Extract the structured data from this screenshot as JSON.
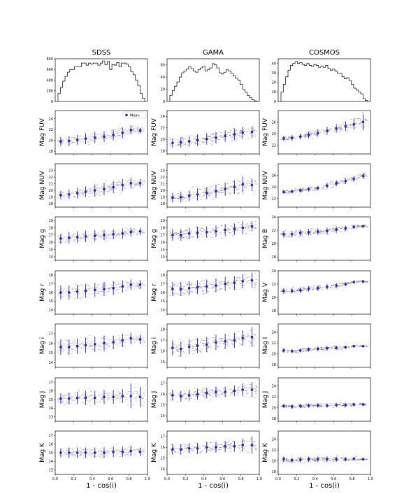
{
  "chart_data": {
    "type": "scatter",
    "column_titles": [
      "SDSS",
      "GAMA",
      "COSMOS"
    ],
    "xlabel": "1 - cos(i)",
    "xlim": [
      0.0,
      1.0
    ],
    "xticks": [
      "0.0",
      "0.2",
      "0.4",
      "0.6",
      "0.8",
      "1.0"
    ],
    "legend": {
      "label": "Mean",
      "placement": "top-right"
    },
    "histograms": [
      {
        "survey": "SDSS",
        "ylim": [
          0,
          800
        ],
        "yticks": [
          "0",
          "200",
          "400",
          "600",
          "800"
        ],
        "values": [
          150,
          260,
          380,
          470,
          550,
          600,
          600,
          650,
          650,
          650,
          720,
          720,
          680,
          720,
          700,
          720,
          720,
          680,
          720,
          760,
          690,
          750,
          600,
          690,
          680,
          730,
          650,
          720,
          720,
          700,
          650,
          560,
          500,
          400,
          300,
          150,
          60
        ]
      },
      {
        "survey": "GAMA",
        "ylim": [
          0,
          70
        ],
        "yticks": [
          "0",
          "20",
          "40",
          "60"
        ],
        "values": [
          10,
          18,
          25,
          32,
          40,
          47,
          50,
          53,
          57,
          54,
          50,
          48,
          52,
          55,
          58,
          50,
          52,
          55,
          62,
          60,
          55,
          47,
          45,
          48,
          52,
          50,
          46,
          42,
          38,
          35,
          28,
          20,
          15,
          10,
          6,
          3,
          1
        ]
      },
      {
        "survey": "COSMOS",
        "ylim": [
          0,
          45
        ],
        "yticks": [
          "0",
          "10",
          "20",
          "30",
          "40"
        ],
        "values": [
          10,
          18,
          26,
          33,
          38,
          40,
          42,
          40,
          41,
          39,
          38,
          40,
          38,
          37,
          39,
          38,
          36,
          37,
          36,
          38,
          35,
          33,
          34,
          32,
          30,
          30,
          26,
          24,
          25,
          22,
          18,
          14,
          12,
          10,
          8,
          3,
          1
        ]
      }
    ],
    "series_x": [
      0.06,
      0.15,
      0.24,
      0.33,
      0.43,
      0.53,
      0.63,
      0.73,
      0.82,
      0.92
    ],
    "rows": [
      {
        "panels": [
          {
            "ylabel": "Mag FUV",
            "ylim": [
              17.5,
              25.5
            ],
            "yticks": [
              18,
              20,
              22,
              24
            ],
            "mean": [
              19.8,
              19.9,
              20.1,
              20.3,
              20.5,
              20.7,
              21.0,
              21.4,
              21.9,
              21.8
            ],
            "err": [
              0.8,
              0.9,
              0.9,
              1.0,
              1.0,
              1.0,
              1.0,
              1.0,
              0.8,
              0.5
            ]
          },
          {
            "ylabel": "Mag FUV",
            "ylim": [
              17.5,
              25
            ],
            "yticks": [
              18,
              20,
              22,
              24
            ],
            "mean": [
              19.4,
              19.5,
              19.7,
              19.9,
              20.1,
              20.3,
              20.6,
              20.9,
              21.2,
              21.3
            ],
            "err": [
              0.8,
              0.9,
              0.9,
              1.0,
              1.0,
              1.0,
              1.0,
              1.0,
              1.0,
              1.0
            ]
          },
          {
            "ylabel": "Mag FUV",
            "ylim": [
              20.5,
              28
            ],
            "yticks": [
              22,
              24,
              26
            ],
            "mean": [
              23.2,
              23.3,
              23.5,
              23.8,
              24.1,
              24.5,
              24.9,
              25.3,
              25.6,
              26.0
            ],
            "err": [
              0.4,
              0.5,
              0.5,
              0.6,
              0.6,
              0.7,
              0.7,
              0.8,
              0.9,
              1.4
            ]
          }
        ]
      },
      {
        "panels": [
          {
            "ylabel": "Mag NUV",
            "ylim": [
              17.5,
              24
            ],
            "yticks": [
              18,
              19,
              20,
              21,
              22,
              23
            ],
            "mean": [
              19.3,
              19.4,
              19.6,
              19.8,
              20.0,
              20.2,
              20.5,
              20.8,
              21.1,
              21.1
            ],
            "err": [
              0.6,
              0.7,
              0.8,
              0.8,
              0.9,
              0.9,
              0.9,
              0.9,
              0.8,
              0.6
            ]
          },
          {
            "ylabel": "Mag NUV",
            "ylim": [
              17.5,
              24
            ],
            "yticks": [
              18,
              19,
              20,
              21,
              22,
              23
            ],
            "mean": [
              18.9,
              19.0,
              19.2,
              19.4,
              19.6,
              19.9,
              20.2,
              20.5,
              20.9,
              20.8
            ],
            "err": [
              0.7,
              0.8,
              0.8,
              0.9,
              0.9,
              1.0,
              1.0,
              1.0,
              1.2,
              0.9
            ]
          },
          {
            "ylabel": "Mag NUV",
            "ylim": [
              20.5,
              28
            ],
            "yticks": [
              22,
              24,
              26
            ],
            "mean": [
              23.1,
              23.2,
              23.4,
              23.6,
              23.8,
              24.2,
              24.6,
              25.0,
              25.4,
              25.9
            ],
            "err": [
              0.3,
              0.3,
              0.4,
              0.4,
              0.4,
              0.5,
              0.5,
              0.5,
              0.5,
              0.5
            ]
          }
        ]
      },
      {
        "panels": [
          {
            "ylabel": "Mag g",
            "ylim": [
              13.5,
              19.5
            ],
            "yticks": [
              14,
              15,
              16,
              17,
              18,
              19
            ],
            "mean": [
              16.5,
              16.6,
              16.7,
              16.8,
              16.9,
              17.0,
              17.1,
              17.2,
              17.4,
              17.5
            ],
            "err": [
              0.7,
              0.8,
              0.8,
              0.8,
              0.8,
              0.7,
              0.7,
              0.7,
              0.6,
              0.5
            ]
          },
          {
            "ylabel": "Mag g",
            "ylim": [
              13.5,
              19.5
            ],
            "yticks": [
              14,
              15,
              16,
              17,
              18,
              19
            ],
            "mean": [
              17.0,
              17.0,
              17.2,
              17.3,
              17.4,
              17.5,
              17.7,
              17.8,
              18.0,
              18.2
            ],
            "err": [
              0.8,
              0.8,
              0.8,
              0.8,
              0.8,
              0.8,
              0.8,
              0.8,
              0.9,
              0.7
            ]
          },
          {
            "ylabel": "Mag B",
            "ylim": [
              17.5,
              24
            ],
            "yticks": [
              18,
              20,
              22,
              24
            ],
            "mean": [
              21.4,
              21.4,
              21.6,
              21.7,
              21.8,
              21.9,
              22.1,
              22.3,
              22.5,
              22.6
            ],
            "err": [
              0.5,
              0.5,
              0.5,
              0.5,
              0.5,
              0.5,
              0.5,
              0.4,
              0.3,
              0.2
            ]
          }
        ]
      },
      {
        "panels": [
          {
            "ylabel": "Mag r",
            "ylim": [
              13.5,
              18.5
            ],
            "yticks": [
              14,
              15,
              16,
              17,
              18
            ],
            "mean": [
              16.0,
              16.0,
              16.1,
              16.2,
              16.3,
              16.4,
              16.5,
              16.7,
              16.9,
              16.9
            ],
            "err": [
              0.8,
              0.8,
              0.8,
              0.8,
              0.8,
              0.8,
              0.8,
              0.7,
              0.6,
              0.5
            ]
          },
          {
            "ylabel": "Mag r",
            "ylim": [
              13.5,
              18.5
            ],
            "yticks": [
              14,
              15,
              16,
              17,
              18
            ],
            "mean": [
              16.4,
              16.4,
              16.5,
              16.6,
              16.7,
              16.8,
              17.0,
              17.1,
              17.3,
              17.4
            ],
            "err": [
              0.8,
              0.8,
              0.8,
              0.8,
              0.8,
              0.8,
              0.8,
              0.8,
              0.8,
              0.9
            ]
          },
          {
            "ylabel": "Mag V",
            "ylim": [
              17.5,
              24
            ],
            "yticks": [
              18,
              20,
              22,
              24
            ],
            "mean": [
              21.0,
              21.0,
              21.1,
              21.3,
              21.4,
              21.6,
              21.8,
              22.0,
              22.3,
              22.4
            ],
            "err": [
              0.4,
              0.4,
              0.4,
              0.4,
              0.4,
              0.4,
              0.4,
              0.3,
              0.2,
              0.2
            ]
          }
        ]
      },
      {
        "panels": [
          {
            "ylabel": "Mag i",
            "ylim": [
              13.5,
              18
            ],
            "yticks": [
              14,
              15,
              16,
              17
            ],
            "mean": [
              15.6,
              15.6,
              15.7,
              15.8,
              15.9,
              16.0,
              16.1,
              16.3,
              16.5,
              16.4
            ],
            "err": [
              0.8,
              0.8,
              0.8,
              0.8,
              0.8,
              0.8,
              0.7,
              0.7,
              0.6,
              0.5
            ]
          },
          {
            "ylabel": "Mag i",
            "ylim": [
              14.5,
              18.5
            ],
            "yticks": [
              15,
              16,
              17,
              18
            ],
            "mean": [
              16.3,
              16.2,
              16.4,
              16.5,
              16.6,
              16.8,
              16.9,
              17.0,
              17.2,
              17.3
            ],
            "err": [
              0.7,
              0.7,
              0.7,
              0.7,
              0.7,
              0.7,
              0.7,
              0.7,
              0.7,
              0.9
            ]
          },
          {
            "ylabel": "Mag I",
            "ylim": [
              17.5,
              25.5
            ],
            "yticks": [
              18,
              20,
              22,
              24
            ],
            "mean": [
              20.6,
              20.5,
              20.6,
              20.8,
              20.9,
              21.0,
              21.1,
              21.2,
              21.4,
              21.4
            ],
            "err": [
              0.4,
              0.4,
              0.4,
              0.4,
              0.4,
              0.4,
              0.4,
              0.3,
              0.2,
              0.1
            ]
          }
        ]
      },
      {
        "panels": [
          {
            "ylabel": "Mag J",
            "ylim": [
              12.5,
              17.5
            ],
            "yticks": [
              13,
              14,
              15,
              16,
              17
            ],
            "mean": [
              15.1,
              15.1,
              15.2,
              15.2,
              15.2,
              15.3,
              15.3,
              15.4,
              15.4,
              15.3
            ],
            "err": [
              0.6,
              0.7,
              0.7,
              0.8,
              0.8,
              0.8,
              0.8,
              0.8,
              1.4,
              1.2
            ]
          },
          {
            "ylabel": "Mag J",
            "ylim": [
              13.5,
              17.5
            ],
            "yticks": [
              14,
              15,
              16,
              17
            ],
            "mean": [
              15.9,
              15.8,
              15.9,
              16.0,
              16.1,
              16.2,
              16.2,
              16.3,
              16.4,
              16.4
            ],
            "err": [
              0.5,
              0.5,
              0.5,
              0.5,
              0.5,
              0.5,
              0.5,
              0.5,
              0.6,
              0.7
            ]
          },
          {
            "ylabel": "Mag J",
            "ylim": [
              17.5,
              25.5
            ],
            "yticks": [
              18,
              20,
              22,
              24
            ],
            "mean": [
              20.3,
              20.2,
              20.3,
              20.4,
              20.4,
              20.4,
              20.5,
              20.5,
              20.6,
              20.6
            ],
            "err": [
              0.3,
              0.4,
              0.4,
              0.4,
              0.4,
              0.4,
              0.4,
              0.4,
              0.3,
              0.2
            ]
          }
        ]
      },
      {
        "panels": [
          {
            "ylabel": "Mag K",
            "ylim": [
              12.5,
              17.5
            ],
            "yticks": [
              13,
              14,
              15,
              16,
              17
            ],
            "mean": [
              15.0,
              15.0,
              15.0,
              15.0,
              15.0,
              15.0,
              15.1,
              15.1,
              15.2,
              15.1
            ],
            "err": [
              0.5,
              0.6,
              0.6,
              0.6,
              0.6,
              0.6,
              0.6,
              0.6,
              0.6,
              0.5
            ]
          },
          {
            "ylabel": "Mag K",
            "ylim": [
              13.5,
              17.5
            ],
            "yticks": [
              14,
              15,
              16,
              17
            ],
            "mean": [
              15.8,
              15.8,
              15.9,
              15.9,
              16.0,
              16.0,
              16.1,
              16.1,
              16.2,
              16.2
            ],
            "err": [
              0.5,
              0.5,
              0.5,
              0.5,
              0.5,
              0.5,
              0.5,
              0.5,
              0.6,
              0.8
            ]
          },
          {
            "ylabel": "Mag K",
            "ylim": [
              17.5,
              25.5
            ],
            "yticks": [
              18,
              20,
              22,
              24
            ],
            "mean": [
              20.3,
              20.1,
              20.2,
              20.3,
              20.3,
              20.3,
              20.3,
              20.3,
              20.4,
              20.3
            ],
            "err": [
              0.5,
              0.5,
              0.5,
              0.5,
              0.5,
              0.5,
              0.5,
              0.4,
              0.3,
              0.2
            ]
          }
        ]
      }
    ],
    "colors": {
      "mean": "#1f1fd6",
      "scatter": "#555555",
      "axes": "#000000",
      "hist": "#000000"
    }
  }
}
